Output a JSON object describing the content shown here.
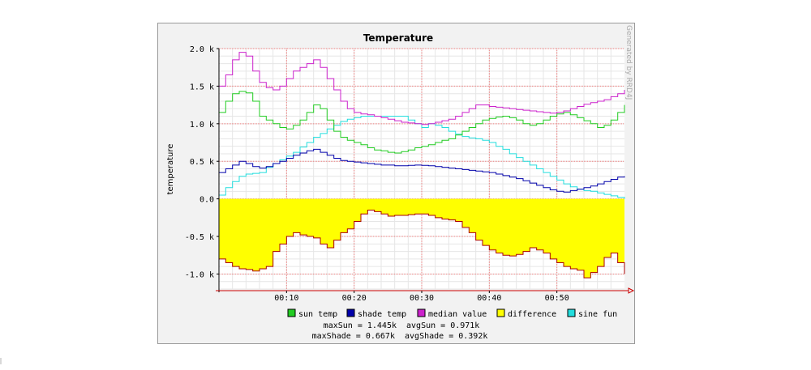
{
  "chart_data": {
    "type": "line",
    "title": "Temperature",
    "ylabel": "temperature",
    "watermark": "Generated by RRD4J",
    "y_ticks": [
      "2.0 k",
      "1.5 k",
      "1.0 k",
      "0.5 k",
      "0.0",
      "-0.5 k",
      "-1.0 k"
    ],
    "y_tick_values": [
      2000,
      1500,
      1000,
      500,
      0,
      -500,
      -1000
    ],
    "x_ticks": [
      "00:10",
      "00:20",
      "00:30",
      "00:40",
      "00:50"
    ],
    "x_tick_values": [
      10,
      20,
      30,
      40,
      50
    ],
    "xlim": [
      0,
      60
    ],
    "ylim": [
      -1200,
      2000
    ],
    "grid": true,
    "colors": {
      "sun": "#22cc22",
      "shade": "#0000aa",
      "median": "#cc22cc",
      "difference_fill": "#ffff00",
      "difference_line": "#aa0000",
      "sine": "#22dddd",
      "major_grid": "#f08080",
      "minor_grid": "#e6e6e6",
      "canvas": "#ffffff",
      "back": "#f2f2f2"
    },
    "x": [
      0,
      1,
      2,
      3,
      4,
      5,
      6,
      7,
      8,
      9,
      10,
      11,
      12,
      13,
      14,
      15,
      16,
      17,
      18,
      19,
      20,
      21,
      22,
      23,
      24,
      25,
      26,
      27,
      28,
      29,
      30,
      31,
      32,
      33,
      34,
      35,
      36,
      37,
      38,
      39,
      40,
      41,
      42,
      43,
      44,
      45,
      46,
      47,
      48,
      49,
      50,
      51,
      52,
      53,
      54,
      55,
      56,
      57,
      58,
      59,
      60
    ],
    "series": [
      {
        "name": "sun temp",
        "key": "sun",
        "values": [
          1150,
          1300,
          1400,
          1430,
          1410,
          1300,
          1100,
          1050,
          1000,
          950,
          930,
          980,
          1050,
          1150,
          1250,
          1200,
          1050,
          900,
          820,
          780,
          750,
          720,
          680,
          650,
          640,
          620,
          610,
          630,
          650,
          680,
          700,
          720,
          750,
          780,
          800,
          850,
          900,
          950,
          1000,
          1050,
          1070,
          1090,
          1100,
          1080,
          1050,
          1000,
          980,
          1000,
          1050,
          1100,
          1130,
          1150,
          1120,
          1080,
          1040,
          1000,
          950,
          980,
          1050,
          1150,
          1250
        ]
      },
      {
        "name": "shade temp",
        "key": "shade",
        "values": [
          350,
          400,
          450,
          500,
          470,
          430,
          410,
          430,
          470,
          500,
          540,
          580,
          610,
          640,
          660,
          620,
          580,
          540,
          510,
          500,
          490,
          480,
          470,
          460,
          450,
          450,
          440,
          440,
          445,
          450,
          445,
          440,
          430,
          420,
          410,
          400,
          390,
          380,
          370,
          360,
          350,
          330,
          310,
          290,
          270,
          240,
          210,
          180,
          150,
          120,
          100,
          90,
          110,
          130,
          150,
          170,
          200,
          230,
          260,
          290,
          300
        ]
      },
      {
        "name": "median value",
        "key": "median",
        "values": [
          1500,
          1650,
          1850,
          1950,
          1900,
          1700,
          1550,
          1480,
          1450,
          1500,
          1600,
          1700,
          1750,
          1800,
          1850,
          1750,
          1600,
          1450,
          1300,
          1200,
          1150,
          1130,
          1120,
          1100,
          1080,
          1060,
          1040,
          1020,
          1010,
          1000,
          990,
          1000,
          1020,
          1040,
          1060,
          1100,
          1150,
          1200,
          1250,
          1250,
          1230,
          1220,
          1210,
          1200,
          1190,
          1180,
          1170,
          1160,
          1150,
          1140,
          1150,
          1170,
          1200,
          1230,
          1260,
          1280,
          1300,
          1320,
          1360,
          1400,
          1450
        ]
      },
      {
        "name": "difference",
        "key": "difference",
        "values": [
          -800,
          -850,
          -900,
          -930,
          -940,
          -960,
          -930,
          -900,
          -700,
          -600,
          -500,
          -450,
          -480,
          -500,
          -520,
          -600,
          -650,
          -550,
          -450,
          -400,
          -300,
          -200,
          -150,
          -170,
          -200,
          -230,
          -220,
          -220,
          -210,
          -200,
          -200,
          -220,
          -250,
          -270,
          -280,
          -300,
          -380,
          -450,
          -550,
          -620,
          -680,
          -720,
          -750,
          -760,
          -740,
          -700,
          -650,
          -680,
          -720,
          -800,
          -850,
          -900,
          -930,
          -950,
          -1050,
          -980,
          -900,
          -780,
          -720,
          -850,
          -1000
        ]
      },
      {
        "name": "sine fun",
        "key": "sine",
        "values": [
          50,
          150,
          230,
          300,
          330,
          340,
          350,
          420,
          470,
          520,
          570,
          620,
          690,
          750,
          820,
          870,
          930,
          980,
          1030,
          1060,
          1080,
          1100,
          1100,
          1100,
          1100,
          1100,
          1100,
          1100,
          1050,
          1000,
          950,
          1000,
          980,
          950,
          900,
          860,
          830,
          810,
          800,
          780,
          750,
          700,
          660,
          600,
          550,
          500,
          450,
          400,
          350,
          300,
          250,
          200,
          160,
          130,
          110,
          100,
          80,
          60,
          40,
          20,
          0
        ]
      }
    ],
    "legend_position": "bottom",
    "stats_lines": [
      "maxSun = 1.445k  avgSun = 0.971k",
      "maxShade = 0.667k  avgShade = 0.392k"
    ]
  }
}
